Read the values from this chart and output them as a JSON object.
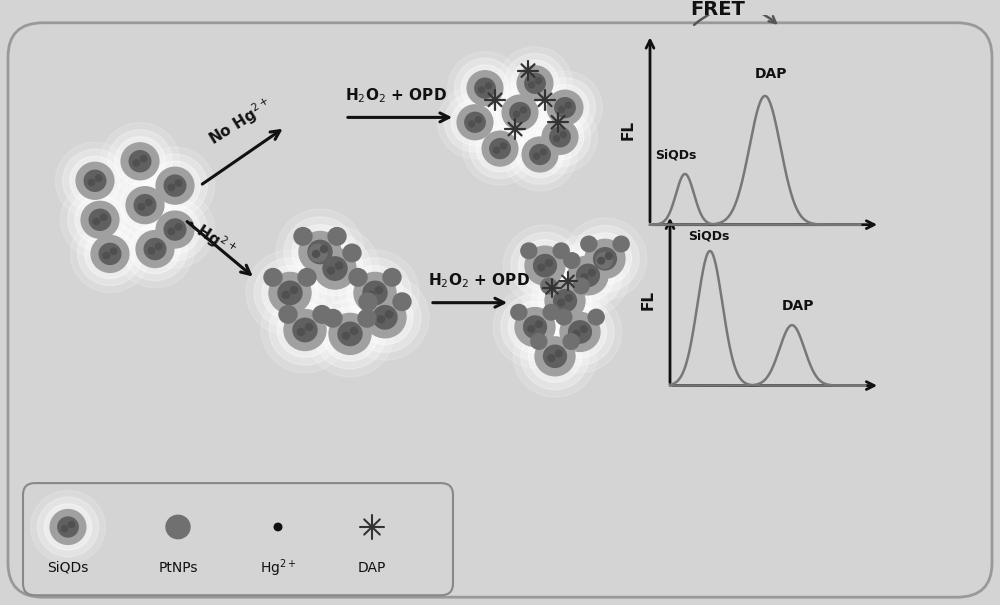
{
  "bg_color": "#d4d4d4",
  "black": "#111111",
  "dark_gray": "#555555",
  "med_gray": "#888888",
  "fig_w": 10.0,
  "fig_h": 6.05,
  "dpi": 100,
  "top_path_label": "No Hg$^{2+}$",
  "bot_path_label": "• Hg$^{2+}$",
  "h2o2_opd": "H$_2$O$_2$ + OPD",
  "fret_label": "FRET",
  "fl_label": "FL",
  "siqds_label": "SiQDs",
  "dap_label": "DAP",
  "legend_items": [
    "SiQDs",
    "PtNPs",
    "Hg$^{2+}$",
    "DAP"
  ]
}
